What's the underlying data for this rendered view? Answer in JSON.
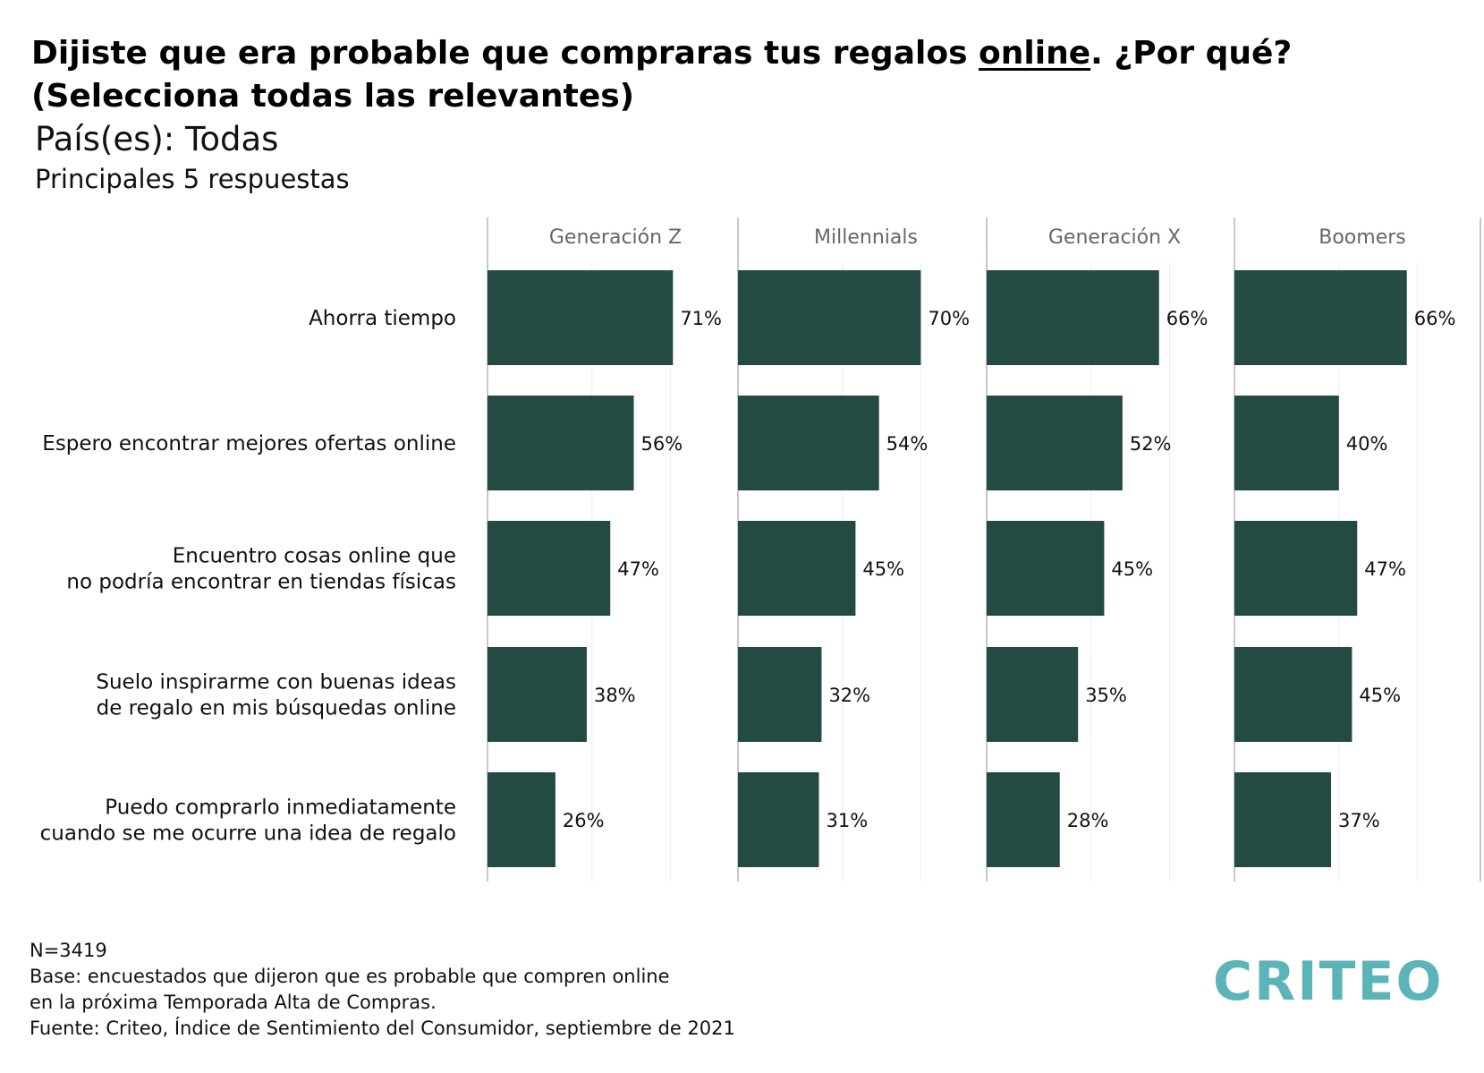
{
  "title": {
    "line1_before": "Dijiste que era probable que compraras tus regalos ",
    "line1_underlined": "online",
    "line1_after": ". ¿Por qué?",
    "line2": "(Selecciona todas las relevantes)"
  },
  "subtitle": "País(es): Todas",
  "subtitle2": "Principales 5 respuestas",
  "chart_data": {
    "type": "bar",
    "orientation": "horizontal",
    "categories": [
      [
        "Ahorra tiempo"
      ],
      [
        "Espero encontrar mejores ofertas online"
      ],
      [
        "Encuentro cosas online que",
        "no podría encontrar en tiendas físicas"
      ],
      [
        "Suelo inspirarme con buenas ideas",
        "de regalo en mis búsquedas online"
      ],
      [
        "Puedo comprarlo inmediatamente",
        "cuando se me ocurre una idea de regalo"
      ]
    ],
    "series": [
      {
        "name": "Generación Z",
        "values": [
          71,
          56,
          47,
          38,
          26
        ]
      },
      {
        "name": "Millennials",
        "values": [
          70,
          54,
          45,
          32,
          31
        ]
      },
      {
        "name": "Generación X",
        "values": [
          66,
          52,
          45,
          35,
          28
        ]
      },
      {
        "name": "Boomers",
        "values": [
          66,
          40,
          47,
          45,
          37
        ]
      }
    ],
    "value_suffix": "%",
    "xlim": [
      0,
      100
    ],
    "grid": true,
    "bar_color": "#234a43"
  },
  "footnotes": [
    "N=3419",
    "Base: encuestados que dijeron que es probable que compren online",
    "en la próxima Temporada Alta de Compras.",
    "Fuente: Criteo, Índice de Sentimiento del Consumidor, septiembre de 2021"
  ],
  "logo": {
    "text": "CRITEO",
    "color": "#5bb5b8"
  }
}
